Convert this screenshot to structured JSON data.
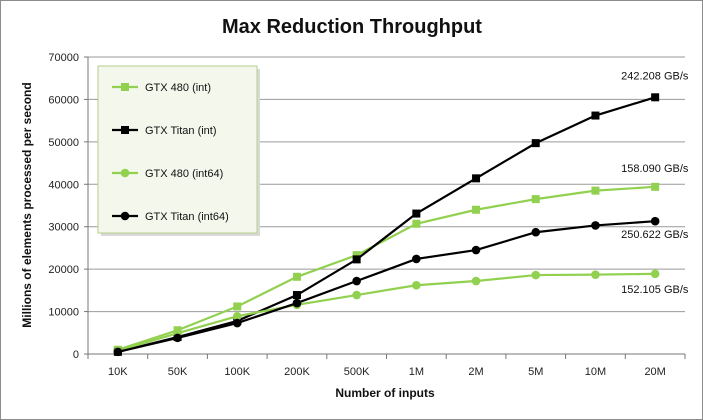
{
  "chart_data": {
    "type": "line",
    "title": "Max Reduction Throughput",
    "xlabel": "Number of inputs",
    "ylabel": "Millions of elements processed per second",
    "categories": [
      "10K",
      "50K",
      "100K",
      "200K",
      "500K",
      "1M",
      "2M",
      "5M",
      "10M",
      "20M"
    ],
    "ylim": [
      0,
      70000
    ],
    "yticks": [
      "0",
      "10000",
      "20000",
      "30000",
      "40000",
      "50000",
      "60000",
      "70000"
    ],
    "grid": "horizontal",
    "legend_position": "top-left",
    "series": [
      {
        "name": "GTX 480 (int)",
        "marker": "square",
        "color": "#92d050",
        "values": [
          1000,
          5600,
          11200,
          18200,
          23300,
          30700,
          34000,
          36500,
          38500,
          39400
        ]
      },
      {
        "name": "GTX Titan (int)",
        "marker": "square",
        "color": "#000000",
        "values": [
          500,
          4000,
          7800,
          13900,
          22300,
          33100,
          41400,
          49700,
          56200,
          60500
        ]
      },
      {
        "name": "GTX 480 (int64)",
        "marker": "circle",
        "color": "#92d050",
        "values": [
          800,
          4900,
          8900,
          11600,
          13900,
          16200,
          17200,
          18600,
          18700,
          18900
        ]
      },
      {
        "name": "GTX Titan (int64)",
        "marker": "circle",
        "color": "#000000",
        "values": [
          500,
          3800,
          7300,
          12000,
          17200,
          22400,
          24500,
          28700,
          30300,
          31300
        ]
      }
    ],
    "annotations": [
      {
        "text": "242.208 GB/s",
        "series": "GTX Titan (int)"
      },
      {
        "text": "158.090 GB/s",
        "series": "GTX 480 (int)"
      },
      {
        "text": "250.622 GB/s",
        "series": "GTX Titan (int64)"
      },
      {
        "text": "152.105 GB/s",
        "series": "GTX 480 (int64)"
      }
    ]
  }
}
